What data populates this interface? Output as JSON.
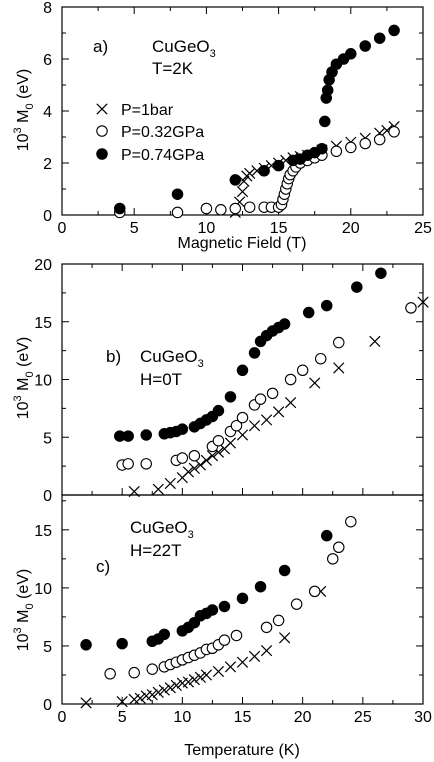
{
  "chart_data": [
    {
      "type": "scatter",
      "panel_label": "a)",
      "annotation_lines": [
        "CuGeO3",
        "T=2K"
      ],
      "xlabel": "Magnetic Field (T)",
      "ylabel": "10^3 M0 (eV)",
      "xlim": [
        0,
        25
      ],
      "ylim": [
        0,
        8
      ],
      "xticks": [
        0,
        5,
        10,
        15,
        20,
        25
      ],
      "yticks": [
        0,
        2,
        4,
        6,
        8
      ],
      "legend": [
        "P=1bar",
        "P=0.32GPa",
        "P=0.74GPa"
      ],
      "series": [
        {
          "name": "P=1bar",
          "marker": "cross",
          "points": [
            [
              12.0,
              0.1
            ],
            [
              12.3,
              0.5
            ],
            [
              12.5,
              0.9
            ],
            [
              12.6,
              1.3
            ],
            [
              12.8,
              1.5
            ],
            [
              13.0,
              1.6
            ],
            [
              13.5,
              1.7
            ],
            [
              14.0,
              1.8
            ],
            [
              14.5,
              1.9
            ],
            [
              15.0,
              2.0
            ],
            [
              15.5,
              2.1
            ],
            [
              16.0,
              2.2
            ],
            [
              16.5,
              2.25
            ],
            [
              17.0,
              2.3
            ],
            [
              18.0,
              2.5
            ],
            [
              19.0,
              2.65
            ],
            [
              20.0,
              2.8
            ],
            [
              21.0,
              2.95
            ],
            [
              22.0,
              3.15
            ],
            [
              22.5,
              3.25
            ],
            [
              23.0,
              3.4
            ]
          ]
        },
        {
          "name": "P=0.32GPa",
          "marker": "open-circle",
          "points": [
            [
              4.0,
              0.1
            ],
            [
              8.0,
              0.1
            ],
            [
              10.0,
              0.25
            ],
            [
              11.0,
              0.2
            ],
            [
              12.0,
              0.25
            ],
            [
              13.0,
              0.3
            ],
            [
              14.0,
              0.3
            ],
            [
              14.5,
              0.3
            ],
            [
              15.0,
              0.3
            ],
            [
              15.2,
              0.4
            ],
            [
              15.3,
              0.6
            ],
            [
              15.4,
              0.8
            ],
            [
              15.5,
              1.0
            ],
            [
              15.6,
              1.2
            ],
            [
              15.7,
              1.4
            ],
            [
              15.8,
              1.55
            ],
            [
              16.0,
              1.7
            ],
            [
              16.2,
              1.85
            ],
            [
              16.5,
              2.0
            ],
            [
              17.0,
              2.1
            ],
            [
              17.5,
              2.2
            ],
            [
              18.0,
              2.3
            ],
            [
              19.0,
              2.45
            ],
            [
              20.0,
              2.6
            ],
            [
              21.0,
              2.75
            ],
            [
              22.0,
              2.9
            ],
            [
              23.0,
              3.2
            ]
          ]
        },
        {
          "name": "P=0.74GPa",
          "marker": "filled-circle",
          "points": [
            [
              4.0,
              0.25
            ],
            [
              8.0,
              0.8
            ],
            [
              12.0,
              1.35
            ],
            [
              14.0,
              1.7
            ],
            [
              15.0,
              1.9
            ],
            [
              16.0,
              2.1
            ],
            [
              16.5,
              2.15
            ],
            [
              17.0,
              2.3
            ],
            [
              17.5,
              2.4
            ],
            [
              18.0,
              2.55
            ],
            [
              18.2,
              3.6
            ],
            [
              18.3,
              4.5
            ],
            [
              18.4,
              4.8
            ],
            [
              18.5,
              5.2
            ],
            [
              18.7,
              5.5
            ],
            [
              19.0,
              5.8
            ],
            [
              19.5,
              6.0
            ],
            [
              20.0,
              6.2
            ],
            [
              21.0,
              6.5
            ],
            [
              22.0,
              6.8
            ],
            [
              23.0,
              7.1
            ]
          ]
        }
      ]
    },
    {
      "type": "scatter",
      "panel_label": "b)",
      "annotation_lines": [
        "CuGeO3",
        "H=0T"
      ],
      "xlabel": "",
      "ylabel": "10^3 M0 (eV)",
      "xlim": [
        0,
        30
      ],
      "ylim": [
        0,
        20
      ],
      "xticks": [
        0,
        5,
        10,
        15,
        20,
        25,
        30
      ],
      "yticks": [
        0,
        5,
        10,
        15,
        20
      ],
      "series": [
        {
          "marker": "cross",
          "points": [
            [
              6.0,
              0.3
            ],
            [
              8.0,
              0.5
            ],
            [
              9.0,
              1.0
            ],
            [
              10.0,
              1.5
            ],
            [
              10.5,
              2.0
            ],
            [
              11.0,
              2.3
            ],
            [
              11.5,
              2.6
            ],
            [
              12.0,
              3.0
            ],
            [
              12.5,
              3.4
            ],
            [
              13.0,
              3.7
            ],
            [
              13.5,
              4.0
            ],
            [
              14.0,
              4.5
            ],
            [
              15.0,
              5.2
            ],
            [
              16.0,
              6.0
            ],
            [
              17.0,
              6.5
            ],
            [
              18.0,
              7.2
            ],
            [
              19.0,
              8.0
            ],
            [
              21.0,
              9.7
            ],
            [
              23.0,
              11.0
            ],
            [
              26.0,
              13.3
            ],
            [
              30.0,
              16.7
            ]
          ]
        },
        {
          "marker": "open-circle",
          "points": [
            [
              5.0,
              2.6
            ],
            [
              5.5,
              2.7
            ],
            [
              7.0,
              2.7
            ],
            [
              9.5,
              3.0
            ],
            [
              10.0,
              3.2
            ],
            [
              11.0,
              3.4
            ],
            [
              12.5,
              4.2
            ],
            [
              13.0,
              4.7
            ],
            [
              14.0,
              5.5
            ],
            [
              14.5,
              6.0
            ],
            [
              15.0,
              6.7
            ],
            [
              16.0,
              7.8
            ],
            [
              16.5,
              8.3
            ],
            [
              17.5,
              8.8
            ],
            [
              19.0,
              10.0
            ],
            [
              20.0,
              10.8
            ],
            [
              21.5,
              11.8
            ],
            [
              23.0,
              13.2
            ],
            [
              29.0,
              16.2
            ]
          ]
        },
        {
          "marker": "filled-circle",
          "points": [
            [
              4.8,
              5.1
            ],
            [
              5.5,
              5.1
            ],
            [
              7.0,
              5.2
            ],
            [
              8.5,
              5.3
            ],
            [
              9.0,
              5.4
            ],
            [
              9.5,
              5.5
            ],
            [
              10.0,
              5.7
            ],
            [
              11.0,
              5.9
            ],
            [
              11.5,
              6.2
            ],
            [
              12.0,
              6.5
            ],
            [
              12.5,
              6.8
            ],
            [
              13.0,
              7.3
            ],
            [
              14.0,
              8.5
            ],
            [
              15.0,
              10.8
            ],
            [
              16.0,
              12.3
            ],
            [
              16.5,
              13.3
            ],
            [
              17.0,
              13.8
            ],
            [
              17.5,
              14.2
            ],
            [
              18.0,
              14.5
            ],
            [
              18.5,
              14.8
            ],
            [
              20.5,
              15.8
            ],
            [
              22.0,
              16.4
            ],
            [
              24.5,
              18.0
            ],
            [
              26.5,
              19.2
            ]
          ]
        }
      ]
    },
    {
      "type": "scatter",
      "panel_label": "c)",
      "annotation_lines": [
        "CuGeO3",
        "H=22T"
      ],
      "xlabel": "Temperature (K)",
      "ylabel": "10^3 M0 (eV)",
      "xlim": [
        0,
        30
      ],
      "ylim": [
        0,
        18
      ],
      "xticks": [
        0,
        5,
        10,
        15,
        20,
        25,
        30
      ],
      "yticks": [
        0,
        5,
        10,
        15
      ],
      "series": [
        {
          "marker": "cross",
          "points": [
            [
              2.0,
              0.1
            ],
            [
              5.0,
              0.2
            ],
            [
              6.0,
              0.4
            ],
            [
              6.5,
              0.5
            ],
            [
              7.0,
              0.7
            ],
            [
              7.5,
              0.8
            ],
            [
              8.0,
              1.0
            ],
            [
              8.5,
              1.2
            ],
            [
              9.0,
              1.4
            ],
            [
              9.5,
              1.6
            ],
            [
              10.0,
              1.8
            ],
            [
              10.5,
              1.9
            ],
            [
              11.0,
              2.1
            ],
            [
              11.5,
              2.3
            ],
            [
              12.0,
              2.5
            ],
            [
              13.0,
              2.8
            ],
            [
              14.0,
              3.2
            ],
            [
              15.0,
              3.6
            ],
            [
              16.0,
              4.1
            ],
            [
              17.0,
              4.6
            ],
            [
              18.5,
              5.7
            ],
            [
              21.5,
              9.7
            ]
          ]
        },
        {
          "marker": "open-circle",
          "points": [
            [
              4.0,
              2.6
            ],
            [
              6.0,
              2.7
            ],
            [
              7.5,
              3.0
            ],
            [
              8.5,
              3.2
            ],
            [
              9.0,
              3.4
            ],
            [
              9.5,
              3.6
            ],
            [
              10.0,
              3.8
            ],
            [
              10.5,
              4.0
            ],
            [
              11.0,
              4.2
            ],
            [
              11.5,
              4.4
            ],
            [
              12.0,
              4.7
            ],
            [
              12.5,
              4.8
            ],
            [
              13.0,
              5.1
            ],
            [
              13.5,
              5.5
            ],
            [
              14.5,
              5.9
            ],
            [
              17.0,
              6.6
            ],
            [
              18.0,
              7.2
            ],
            [
              19.5,
              8.6
            ],
            [
              21.0,
              9.7
            ],
            [
              22.5,
              12.5
            ],
            [
              23.0,
              13.5
            ],
            [
              24.0,
              15.7
            ]
          ]
        },
        {
          "marker": "filled-circle",
          "points": [
            [
              2.0,
              5.1
            ],
            [
              5.0,
              5.2
            ],
            [
              7.5,
              5.4
            ],
            [
              8.0,
              5.6
            ],
            [
              8.5,
              6.0
            ],
            [
              10.0,
              6.3
            ],
            [
              10.5,
              6.6
            ],
            [
              11.0,
              7.0
            ],
            [
              11.5,
              7.6
            ],
            [
              12.0,
              7.8
            ],
            [
              12.5,
              8.1
            ],
            [
              13.5,
              8.4
            ],
            [
              15.0,
              9.1
            ],
            [
              16.5,
              10.1
            ],
            [
              18.5,
              11.5
            ],
            [
              22.0,
              14.5
            ]
          ]
        }
      ]
    }
  ]
}
